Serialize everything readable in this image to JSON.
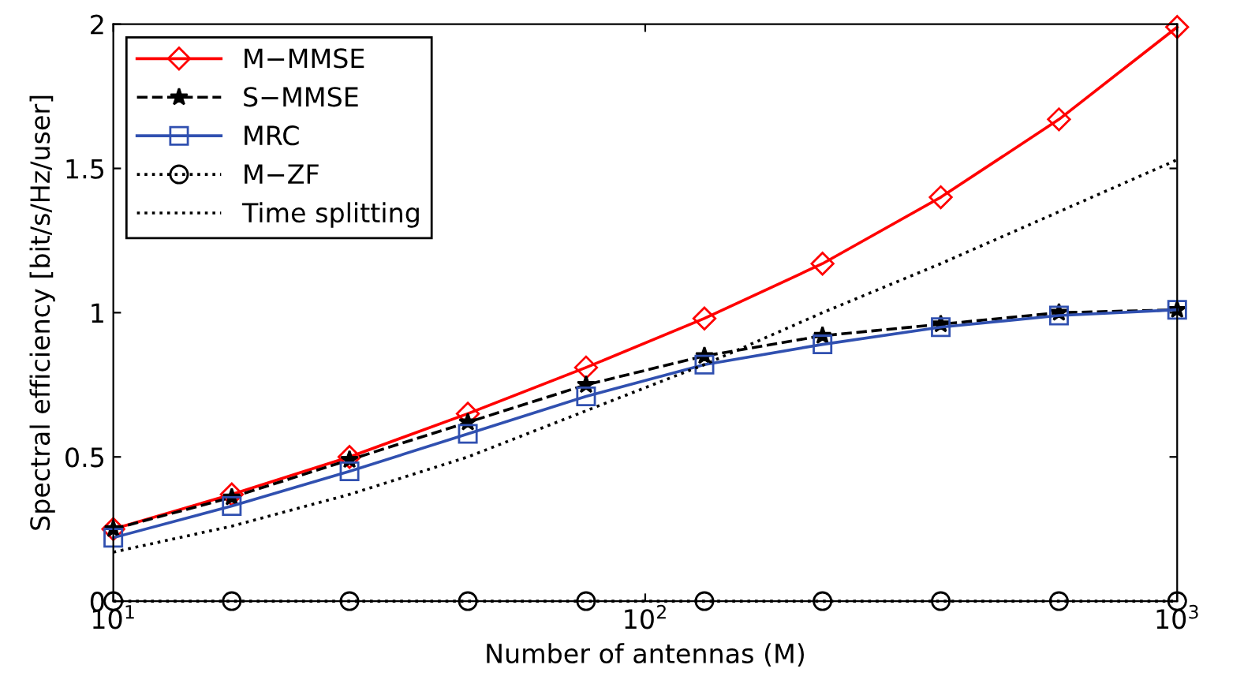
{
  "chart_data": {
    "type": "line",
    "xlabel": "Number of antennas (M)",
    "ylabel": "Spectral efficiency [bit/s/Hz/user]",
    "log": "x",
    "xlim": [
      10,
      1000
    ],
    "ylim": [
      0,
      2
    ],
    "xticks": [
      {
        "value": 10,
        "label": "10$^{1}$"
      },
      {
        "value": 100,
        "label": "10$^{2}$"
      },
      {
        "value": 1000,
        "label": "10$^{3}$"
      }
    ],
    "yticks": [
      0,
      0.5,
      1,
      1.5,
      2
    ],
    "grid": false,
    "legend": "top left",
    "x": [
      10,
      16.7,
      27.8,
      46.4,
      77.4,
      129.2,
      215.4,
      359.4,
      599.5,
      1000
    ],
    "series": [
      {
        "name": "M−MMSE",
        "color": "#ff0000",
        "marker": "diamond",
        "line_style": "solid",
        "values": [
          0.25,
          0.37,
          0.5,
          0.65,
          0.81,
          0.98,
          1.17,
          1.4,
          1.67,
          1.99
        ]
      },
      {
        "name": "S−MMSE",
        "color": "#000000",
        "marker": "star",
        "line_style": "dashed",
        "values": [
          0.25,
          0.36,
          0.49,
          0.62,
          0.75,
          0.85,
          0.92,
          0.96,
          1.0,
          1.01
        ]
      },
      {
        "name": "MRC",
        "color": "#3050b0",
        "marker": "square",
        "line_style": "solid",
        "values": [
          0.22,
          0.33,
          0.45,
          0.58,
          0.71,
          0.82,
          0.89,
          0.95,
          0.99,
          1.01
        ]
      },
      {
        "name": "M−ZF",
        "color": "#000000",
        "marker": "circle",
        "line_style": "dotted",
        "values": [
          0,
          0,
          0,
          0,
          0,
          0,
          0,
          0,
          0,
          0
        ]
      },
      {
        "name": "Time splitting",
        "color": "#000000",
        "marker": "none",
        "line_style": "dotted",
        "values": [
          0.17,
          0.26,
          0.37,
          0.5,
          0.66,
          0.82,
          1.0,
          1.17,
          1.35,
          1.53
        ]
      }
    ]
  }
}
